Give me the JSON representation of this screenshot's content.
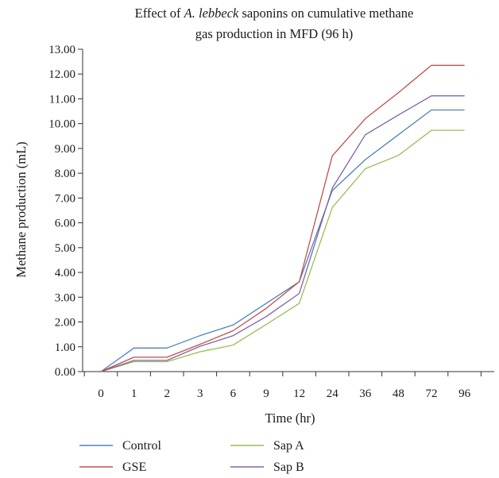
{
  "chart_data": {
    "type": "line",
    "title_parts": [
      {
        "text": "Effect of ",
        "italic": false
      },
      {
        "text": "A. lebbeck",
        "italic": true
      },
      {
        "text": " saponins on cumulative methane",
        "italic": false
      }
    ],
    "title_line2": "gas production in MFD (96 h)",
    "xlabel": "Time (hr)",
    "ylabel": "Methane production (mL)",
    "categories": [
      "0",
      "1",
      "2",
      "3",
      "6",
      "9",
      "12",
      "24",
      "36",
      "48",
      "72",
      "96"
    ],
    "yticks": [
      "0.00",
      "1.00",
      "2.00",
      "3.00",
      "4.00",
      "5.00",
      "6.00",
      "7.00",
      "8.00",
      "9.00",
      "10.00",
      "11.00",
      "12.00",
      "13.00"
    ],
    "ylim": [
      0,
      13
    ],
    "grid": false,
    "legend_position": "bottom",
    "series": [
      {
        "name": "Control",
        "color": "#4f81bd",
        "values": [
          0,
          0.95,
          0.95,
          1.45,
          1.88,
          2.75,
          3.62,
          7.3,
          8.55,
          9.55,
          10.55,
          10.55
        ]
      },
      {
        "name": "GSE",
        "color": "#c0504d",
        "values": [
          0,
          0.58,
          0.58,
          1.1,
          1.65,
          2.55,
          3.62,
          8.7,
          10.2,
          11.25,
          12.35,
          12.35
        ]
      },
      {
        "name": "Sap A",
        "color": "#9bbb59",
        "values": [
          0,
          0.4,
          0.4,
          0.8,
          1.07,
          1.9,
          2.75,
          6.62,
          8.18,
          8.72,
          9.73,
          9.73
        ]
      },
      {
        "name": "Sap B",
        "color": "#8064a2",
        "values": [
          0,
          0.45,
          0.45,
          1.02,
          1.45,
          2.22,
          3.15,
          7.4,
          9.55,
          10.35,
          11.12,
          11.12
        ]
      }
    ]
  }
}
